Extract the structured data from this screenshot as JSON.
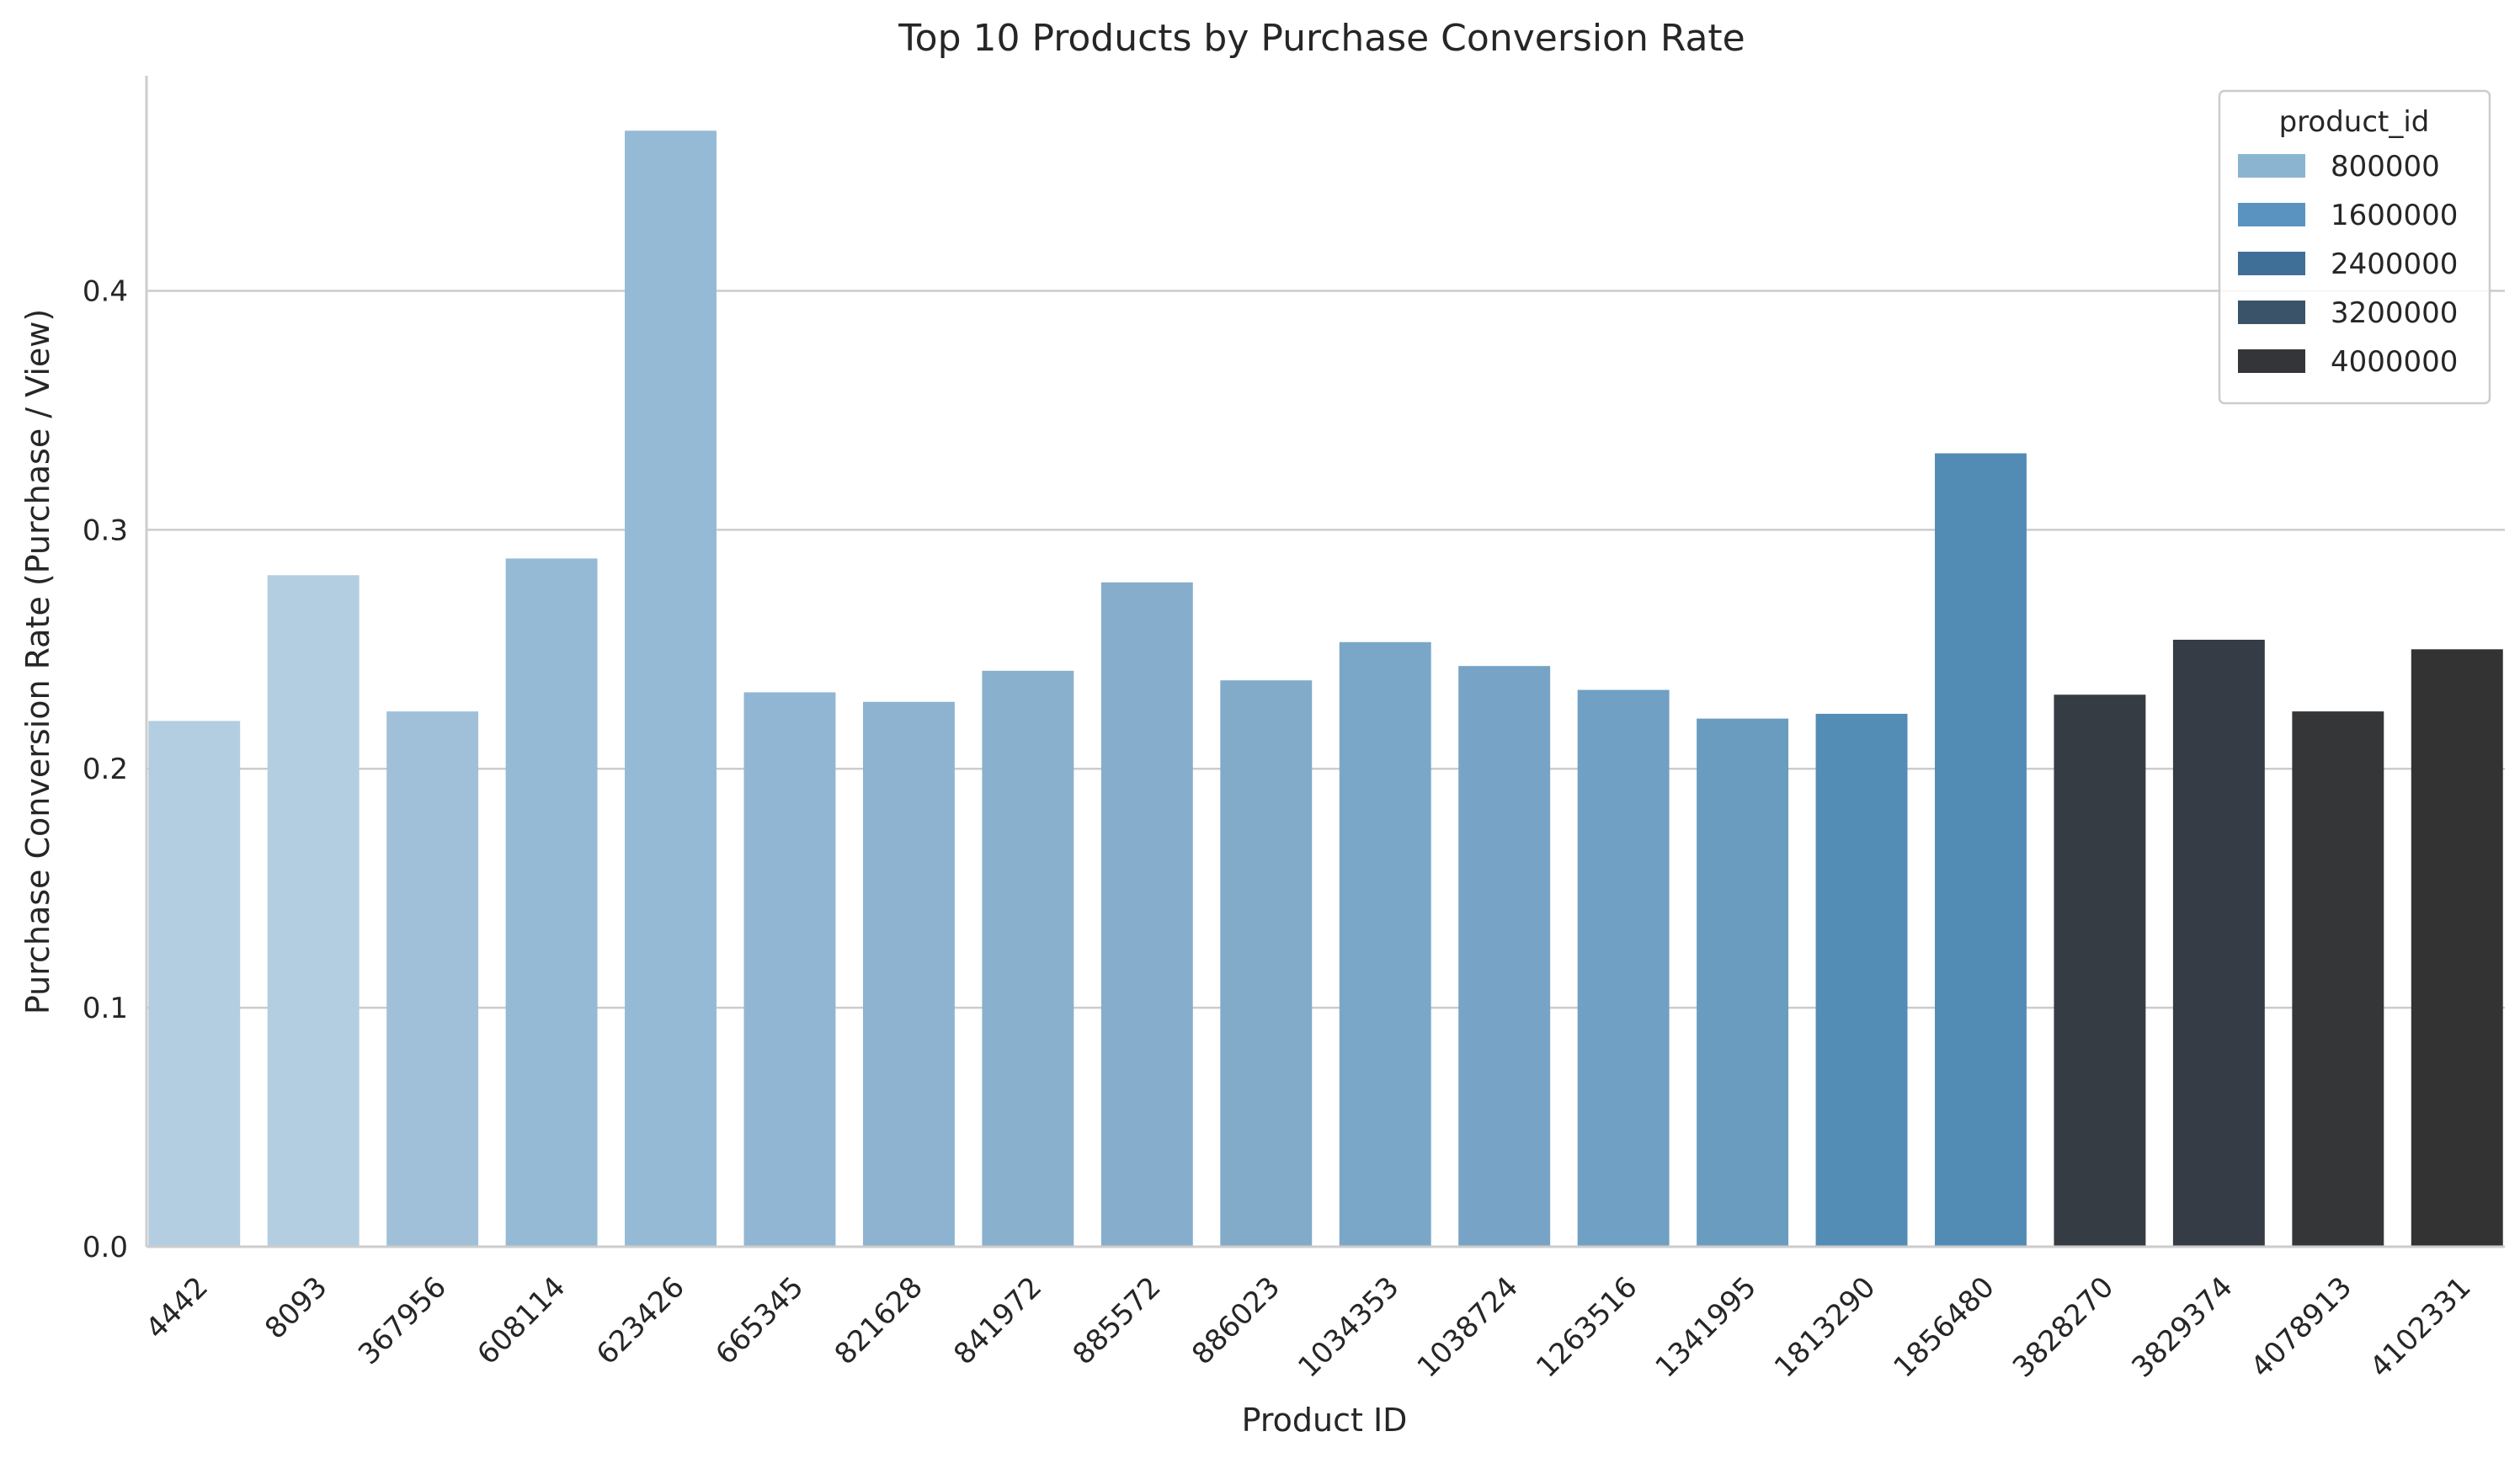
{
  "chart_data": {
    "type": "bar",
    "title": "Top 10 Products by Purchase Conversion Rate",
    "xlabel": "Product ID",
    "ylabel": "Purchase Conversion Rate (Purchase / View)",
    "ylim": [
      0,
      0.49
    ],
    "yticks": [
      "0.0",
      "0.1",
      "0.2",
      "0.3",
      "0.4"
    ],
    "ytick_values": [
      0.0,
      0.1,
      0.2,
      0.3,
      0.4
    ],
    "grid": "horizontal",
    "legend_position": "top-right",
    "legend": {
      "title": "product_id",
      "entries": [
        {
          "label": "800000",
          "color": "#8bb4d1"
        },
        {
          "label": "1600000",
          "color": "#5b93c0"
        },
        {
          "label": "2400000",
          "color": "#3f6f97"
        },
        {
          "label": "3200000",
          "color": "#3a5369"
        },
        {
          "label": "4000000",
          "color": "#333538"
        }
      ]
    },
    "categories": [
      "4442",
      "8093",
      "367956",
      "608114",
      "623426",
      "665345",
      "821628",
      "841972",
      "885572",
      "886023",
      "1034353",
      "1038724",
      "1263516",
      "1341995",
      "1813290",
      "1856480",
      "3828270",
      "3829374",
      "4078913",
      "4102331"
    ],
    "values": [
      0.22,
      0.281,
      0.224,
      0.288,
      0.467,
      0.232,
      0.228,
      0.241,
      0.278,
      0.237,
      0.253,
      0.243,
      0.233,
      0.221,
      0.223,
      0.332,
      0.231,
      0.254,
      0.224,
      0.25
    ],
    "colors": [
      "#b3cde1",
      "#b3cde1",
      "#9fc0d8",
      "#95bad5",
      "#95bad5",
      "#91b6d3",
      "#8db3d0",
      "#89b0cc",
      "#86adcb",
      "#82abca",
      "#7aa7c8",
      "#76a3c6",
      "#70a0c3",
      "#6a9cc0",
      "#538cb5",
      "#528cb5",
      "#363c43",
      "#363c45",
      "#353637",
      "#333333"
    ]
  }
}
